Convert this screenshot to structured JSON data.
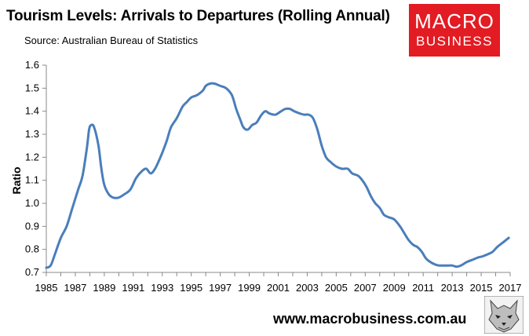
{
  "header": {
    "title": "Tourism Levels: Arrivals to Departures (Rolling Annual)",
    "source": "Source: Australian Bureau of Statistics"
  },
  "logo": {
    "line1": "MACRO",
    "line2": "BUSINESS"
  },
  "footer": {
    "url": "www.macrobusiness.com.au"
  },
  "colors": {
    "line": "#4a7ebb",
    "logo_bg": "#e31b23",
    "axis": "#888888"
  },
  "chart_data": {
    "type": "line",
    "title": "Tourism Levels: Arrivals to Departures (Rolling Annual)",
    "xlabel": "",
    "ylabel": "Ratio",
    "xlim": [
      1985,
      2017
    ],
    "ylim": [
      0.7,
      1.6
    ],
    "x_ticks": [
      1985,
      1987,
      1989,
      1991,
      1993,
      1995,
      1997,
      1999,
      2001,
      2003,
      2005,
      2007,
      2009,
      2011,
      2013,
      2015,
      2017
    ],
    "x_tick_labels": [
      "1985",
      "1987",
      "1989",
      "1991",
      "1993",
      "1995",
      "1997",
      "1999",
      "2001",
      "2003",
      "2005",
      "2007",
      "2009",
      "2011",
      "2013",
      "2015",
      "2017"
    ],
    "y_ticks": [
      0.7,
      0.8,
      0.9,
      1.0,
      1.1,
      1.2,
      1.3,
      1.4,
      1.5,
      1.6
    ],
    "y_tick_labels": [
      "0.7",
      "0.8",
      "0.9",
      "1.0",
      "1.1",
      "1.2",
      "1.3",
      "1.4",
      "1.5",
      "1.6"
    ],
    "grid": false,
    "series": [
      {
        "name": "Arrivals to Departures",
        "x": [
          1985.0,
          1985.3,
          1985.6,
          1986.0,
          1986.4,
          1986.8,
          1987.2,
          1987.5,
          1987.8,
          1987.95,
          1988.1,
          1988.3,
          1988.6,
          1988.8,
          1989.0,
          1989.3,
          1989.6,
          1990.0,
          1990.4,
          1990.8,
          1991.2,
          1991.6,
          1991.9,
          1992.2,
          1992.5,
          1992.8,
          1993.0,
          1993.3,
          1993.6,
          1994.0,
          1994.4,
          1994.7,
          1995.0,
          1995.4,
          1995.8,
          1996.0,
          1996.3,
          1996.6,
          1997.0,
          1997.4,
          1997.8,
          1998.1,
          1998.4,
          1998.6,
          1998.9,
          1999.2,
          1999.5,
          1999.8,
          2000.1,
          2000.4,
          2000.8,
          2001.2,
          2001.5,
          2001.8,
          2002.1,
          2002.5,
          2002.8,
          2003.1,
          2003.4,
          2003.7,
          2004.0,
          2004.3,
          2004.6,
          2005.0,
          2005.4,
          2005.8,
          2006.1,
          2006.5,
          2006.8,
          2007.1,
          2007.4,
          2007.7,
          2008.0,
          2008.3,
          2008.6,
          2009.0,
          2009.4,
          2009.7,
          2010.0,
          2010.3,
          2010.6,
          2010.9,
          2011.2,
          2011.5,
          2011.8,
          2012.1,
          2012.5,
          2012.8,
          2013.0,
          2013.3,
          2013.6,
          2014.0,
          2014.4,
          2014.8,
          2015.1,
          2015.5,
          2015.8,
          2016.1,
          2016.4,
          2016.7,
          2016.9
        ],
        "values": [
          0.72,
          0.73,
          0.78,
          0.85,
          0.9,
          0.98,
          1.06,
          1.12,
          1.24,
          1.32,
          1.34,
          1.33,
          1.25,
          1.15,
          1.08,
          1.04,
          1.025,
          1.025,
          1.04,
          1.06,
          1.11,
          1.14,
          1.15,
          1.13,
          1.15,
          1.19,
          1.22,
          1.27,
          1.33,
          1.37,
          1.42,
          1.44,
          1.46,
          1.47,
          1.49,
          1.51,
          1.52,
          1.52,
          1.51,
          1.5,
          1.47,
          1.41,
          1.36,
          1.33,
          1.32,
          1.34,
          1.35,
          1.38,
          1.4,
          1.39,
          1.385,
          1.4,
          1.41,
          1.41,
          1.4,
          1.39,
          1.385,
          1.385,
          1.37,
          1.32,
          1.25,
          1.2,
          1.18,
          1.16,
          1.15,
          1.15,
          1.13,
          1.12,
          1.1,
          1.07,
          1.03,
          1.0,
          0.98,
          0.95,
          0.94,
          0.93,
          0.9,
          0.87,
          0.84,
          0.82,
          0.81,
          0.79,
          0.76,
          0.745,
          0.735,
          0.73,
          0.73,
          0.73,
          0.73,
          0.725,
          0.73,
          0.745,
          0.755,
          0.765,
          0.77,
          0.78,
          0.79,
          0.81,
          0.825,
          0.84,
          0.85
        ]
      }
    ]
  }
}
